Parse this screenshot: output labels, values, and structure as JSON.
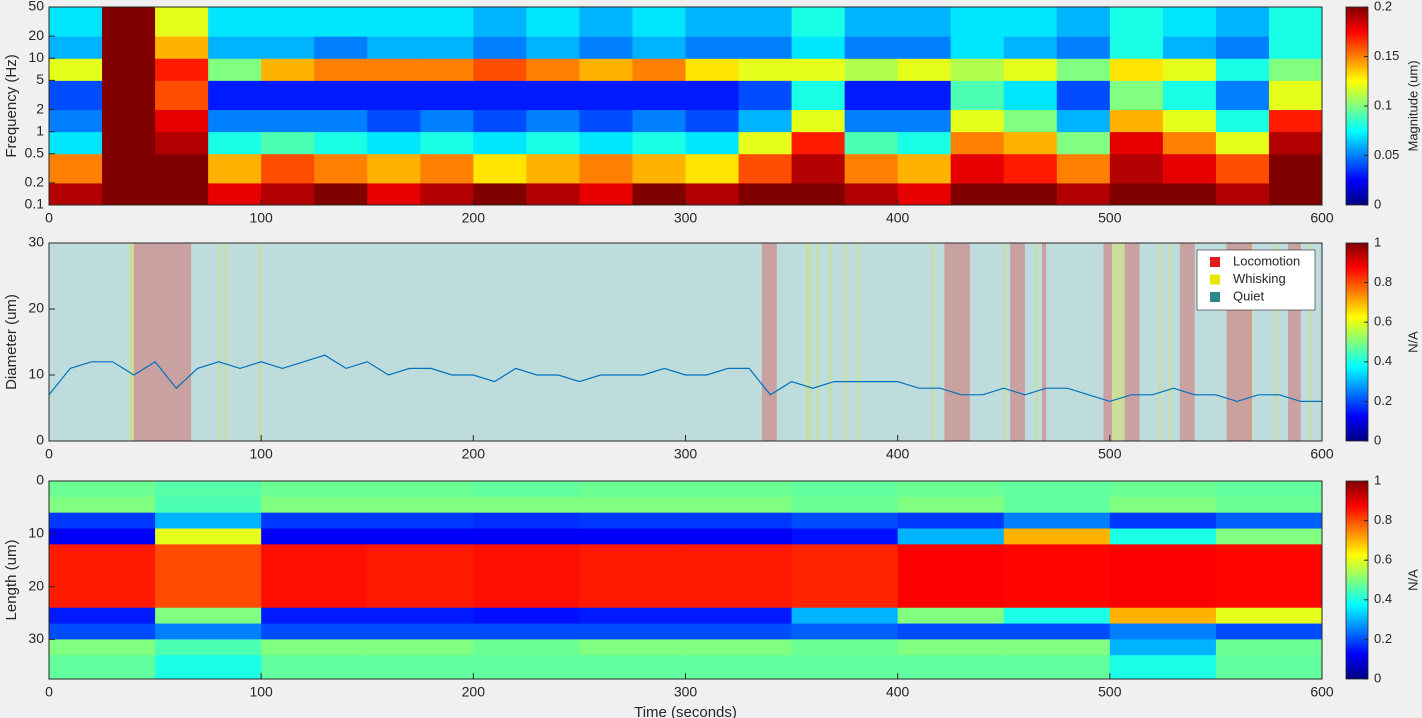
{
  "chart_data": [
    {
      "type": "heatmap",
      "colormap": "jet",
      "ylabel": "Frequency (Hz)",
      "ylog": true,
      "xedges": [
        0,
        25,
        50,
        75,
        100,
        125,
        150,
        175,
        200,
        225,
        250,
        275,
        300,
        325,
        350,
        375,
        400,
        425,
        450,
        475,
        500,
        525,
        550,
        575,
        600
      ],
      "yedges": [
        0.1,
        0.2,
        0.5,
        1,
        2,
        5,
        10,
        20,
        50
      ],
      "z": [
        [
          0.19,
          0.2,
          0.2,
          0.18,
          0.19,
          0.2,
          0.18,
          0.19,
          0.2,
          0.19,
          0.18,
          0.2,
          0.19,
          0.2,
          0.2,
          0.19,
          0.18,
          0.2,
          0.2,
          0.19,
          0.2,
          0.2,
          0.19,
          0.2
        ],
        [
          0.15,
          0.2,
          0.2,
          0.14,
          0.16,
          0.15,
          0.14,
          0.15,
          0.13,
          0.14,
          0.15,
          0.14,
          0.13,
          0.16,
          0.19,
          0.15,
          0.14,
          0.18,
          0.17,
          0.15,
          0.19,
          0.18,
          0.16,
          0.2
        ],
        [
          0.07,
          0.2,
          0.19,
          0.08,
          0.09,
          0.08,
          0.07,
          0.08,
          0.07,
          0.08,
          0.07,
          0.08,
          0.07,
          0.12,
          0.17,
          0.09,
          0.08,
          0.15,
          0.14,
          0.1,
          0.18,
          0.15,
          0.12,
          0.19
        ],
        [
          0.05,
          0.2,
          0.18,
          0.05,
          0.05,
          0.05,
          0.04,
          0.05,
          0.04,
          0.05,
          0.04,
          0.05,
          0.04,
          0.06,
          0.12,
          0.05,
          0.05,
          0.12,
          0.1,
          0.06,
          0.14,
          0.12,
          0.08,
          0.17
        ],
        [
          0.04,
          0.2,
          0.16,
          0.03,
          0.03,
          0.03,
          0.03,
          0.03,
          0.03,
          0.03,
          0.03,
          0.03,
          0.03,
          0.04,
          0.08,
          0.03,
          0.03,
          0.09,
          0.07,
          0.04,
          0.1,
          0.08,
          0.05,
          0.12
        ],
        [
          0.12,
          0.2,
          0.17,
          0.1,
          0.14,
          0.15,
          0.15,
          0.15,
          0.16,
          0.15,
          0.14,
          0.15,
          0.13,
          0.12,
          0.12,
          0.11,
          0.12,
          0.11,
          0.12,
          0.1,
          0.13,
          0.12,
          0.08,
          0.1
        ],
        [
          0.06,
          0.2,
          0.14,
          0.06,
          0.06,
          0.05,
          0.06,
          0.06,
          0.05,
          0.06,
          0.05,
          0.06,
          0.05,
          0.05,
          0.07,
          0.05,
          0.05,
          0.07,
          0.06,
          0.05,
          0.08,
          0.06,
          0.05,
          0.08
        ],
        [
          0.07,
          0.2,
          0.12,
          0.07,
          0.07,
          0.07,
          0.07,
          0.07,
          0.06,
          0.07,
          0.06,
          0.07,
          0.06,
          0.06,
          0.08,
          0.06,
          0.06,
          0.07,
          0.07,
          0.06,
          0.08,
          0.07,
          0.06,
          0.08
        ]
      ],
      "xlim": [
        0,
        600
      ],
      "xticks": [
        0,
        100,
        200,
        300,
        400,
        500,
        600
      ],
      "ylim": [
        0.1,
        50
      ],
      "yticks": [
        0.1,
        0.2,
        0.5,
        1,
        2,
        5,
        10,
        20,
        50
      ],
      "clim": [
        0,
        0.2
      ],
      "cticks": [
        0,
        0.05,
        0.1,
        0.15,
        0.2
      ],
      "clabel": "Magnitude (um)"
    },
    {
      "type": "line",
      "ylabel": "Diameter (um)",
      "color": "#0072bd",
      "x": [
        0,
        10,
        20,
        30,
        40,
        50,
        60,
        70,
        80,
        90,
        100,
        110,
        120,
        130,
        140,
        150,
        160,
        170,
        180,
        190,
        200,
        210,
        220,
        230,
        240,
        250,
        260,
        270,
        280,
        290,
        300,
        310,
        320,
        330,
        340,
        350,
        360,
        370,
        380,
        390,
        400,
        410,
        420,
        430,
        440,
        450,
        460,
        470,
        480,
        490,
        500,
        510,
        520,
        530,
        540,
        550,
        560,
        570,
        580,
        590,
        600
      ],
      "values": [
        7,
        11,
        12,
        12,
        10,
        12,
        8,
        11,
        12,
        11,
        12,
        11,
        12,
        13,
        11,
        12,
        10,
        11,
        11,
        10,
        10,
        9,
        11,
        10,
        10,
        9,
        10,
        10,
        10,
        11,
        10,
        10,
        11,
        11,
        7,
        9,
        8,
        9,
        9,
        9,
        9,
        8,
        8,
        7,
        7,
        8,
        7,
        8,
        8,
        7,
        6,
        7,
        7,
        8,
        7,
        7,
        6,
        7,
        7,
        6,
        6
      ],
      "states": [
        {
          "name": "Locomotion",
          "color": "#e31a1c",
          "intervals": [
            [
              40,
              67
            ],
            [
              336,
              343
            ],
            [
              422,
              434
            ],
            [
              453,
              460
            ],
            [
              468,
              470
            ],
            [
              497,
              501
            ],
            [
              507,
              514
            ],
            [
              533,
              540
            ],
            [
              555,
              567
            ],
            [
              584,
              590
            ]
          ]
        },
        {
          "name": "Whisking",
          "color": "#e6e600",
          "intervals": [
            [
              38,
              40
            ],
            [
              80,
              81
            ],
            [
              83,
              84
            ],
            [
              99,
              100
            ],
            [
              357,
              359
            ],
            [
              362,
              363
            ],
            [
              368,
              369
            ],
            [
              375,
              376
            ],
            [
              381,
              382
            ],
            [
              416,
              417
            ],
            [
              450,
              451
            ],
            [
              465,
              466
            ],
            [
              501,
              507
            ],
            [
              523,
              524
            ],
            [
              528,
              529
            ],
            [
              566,
              567
            ],
            [
              578,
              579
            ],
            [
              594,
              595
            ]
          ]
        },
        {
          "name": "Quiet",
          "color": "#2a8a8a",
          "intervals": [
            [
              0,
              600
            ]
          ]
        }
      ],
      "legend": "upper right",
      "xlim": [
        0,
        600
      ],
      "xticks": [
        0,
        100,
        200,
        300,
        400,
        500,
        600
      ],
      "ylim": [
        0,
        30
      ],
      "yticks": [
        0,
        10,
        20,
        30
      ],
      "clim": [
        0,
        1
      ],
      "cticks": [
        0,
        0.2,
        0.4,
        0.6,
        0.8,
        1
      ],
      "clabel": "N/A"
    },
    {
      "type": "heatmap",
      "colormap": "jet",
      "ylabel": "Length (um)",
      "xlabel": "Time (seconds)",
      "yreverse": true,
      "xedges": [
        0,
        50,
        100,
        150,
        200,
        250,
        300,
        350,
        400,
        450,
        500,
        550,
        600
      ],
      "yedges": [
        0,
        3,
        6,
        9,
        12,
        24,
        27,
        30,
        33,
        37.5
      ],
      "z": [
        [
          0.48,
          0.46,
          0.48,
          0.48,
          0.47,
          0.48,
          0.48,
          0.47,
          0.48,
          0.47,
          0.48,
          0.47
        ],
        [
          0.5,
          0.45,
          0.5,
          0.5,
          0.5,
          0.5,
          0.5,
          0.48,
          0.5,
          0.47,
          0.5,
          0.48
        ],
        [
          0.18,
          0.3,
          0.18,
          0.18,
          0.17,
          0.18,
          0.18,
          0.2,
          0.18,
          0.25,
          0.18,
          0.22
        ],
        [
          0.12,
          0.6,
          0.12,
          0.12,
          0.12,
          0.12,
          0.12,
          0.14,
          0.3,
          0.7,
          0.4,
          0.5
        ],
        [
          0.85,
          0.8,
          0.86,
          0.85,
          0.86,
          0.85,
          0.85,
          0.84,
          0.88,
          0.87,
          0.88,
          0.87
        ],
        [
          0.15,
          0.5,
          0.15,
          0.15,
          0.14,
          0.15,
          0.15,
          0.3,
          0.5,
          0.4,
          0.7,
          0.6
        ],
        [
          0.2,
          0.25,
          0.2,
          0.2,
          0.2,
          0.2,
          0.2,
          0.22,
          0.2,
          0.2,
          0.25,
          0.2
        ],
        [
          0.5,
          0.45,
          0.5,
          0.5,
          0.48,
          0.5,
          0.5,
          0.48,
          0.5,
          0.5,
          0.3,
          0.48
        ],
        [
          0.47,
          0.4,
          0.47,
          0.47,
          0.47,
          0.47,
          0.47,
          0.47,
          0.47,
          0.47,
          0.4,
          0.47
        ]
      ],
      "xlim": [
        0,
        600
      ],
      "xticks": [
        0,
        100,
        200,
        300,
        400,
        500,
        600
      ],
      "ylim": [
        0,
        37.5
      ],
      "yticks": [
        0,
        10,
        20,
        30
      ],
      "clim": [
        0,
        1
      ],
      "cticks": [
        0,
        0.2,
        0.4,
        0.6,
        0.8,
        1
      ],
      "clabel": "N/A"
    }
  ]
}
